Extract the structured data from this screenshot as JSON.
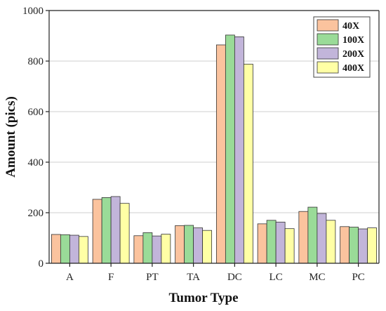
{
  "chart_data": {
    "type": "bar",
    "xlabel": "Tumor Type",
    "ylabel": "Amount (pics)",
    "categories": [
      "A",
      "F",
      "PT",
      "TA",
      "DC",
      "LC",
      "MC",
      "PC"
    ],
    "ylim": [
      0,
      1000
    ],
    "yticks": [
      0,
      200,
      400,
      600,
      800,
      1000
    ],
    "grid": true,
    "legend_position": "top-right",
    "series": [
      {
        "name": "40X",
        "color": "#FBC39E",
        "values": [
          114,
          253,
          109,
          149,
          864,
          156,
          205,
          145
        ]
      },
      {
        "name": "100X",
        "color": "#9ADB98",
        "values": [
          113,
          260,
          121,
          150,
          903,
          170,
          222,
          143
        ]
      },
      {
        "name": "200X",
        "color": "#C2B5DA",
        "values": [
          111,
          264,
          108,
          140,
          896,
          163,
          197,
          136
        ]
      },
      {
        "name": "400X",
        "color": "#FFFFA5",
        "values": [
          106,
          237,
          115,
          130,
          788,
          137,
          170,
          140
        ]
      }
    ]
  }
}
